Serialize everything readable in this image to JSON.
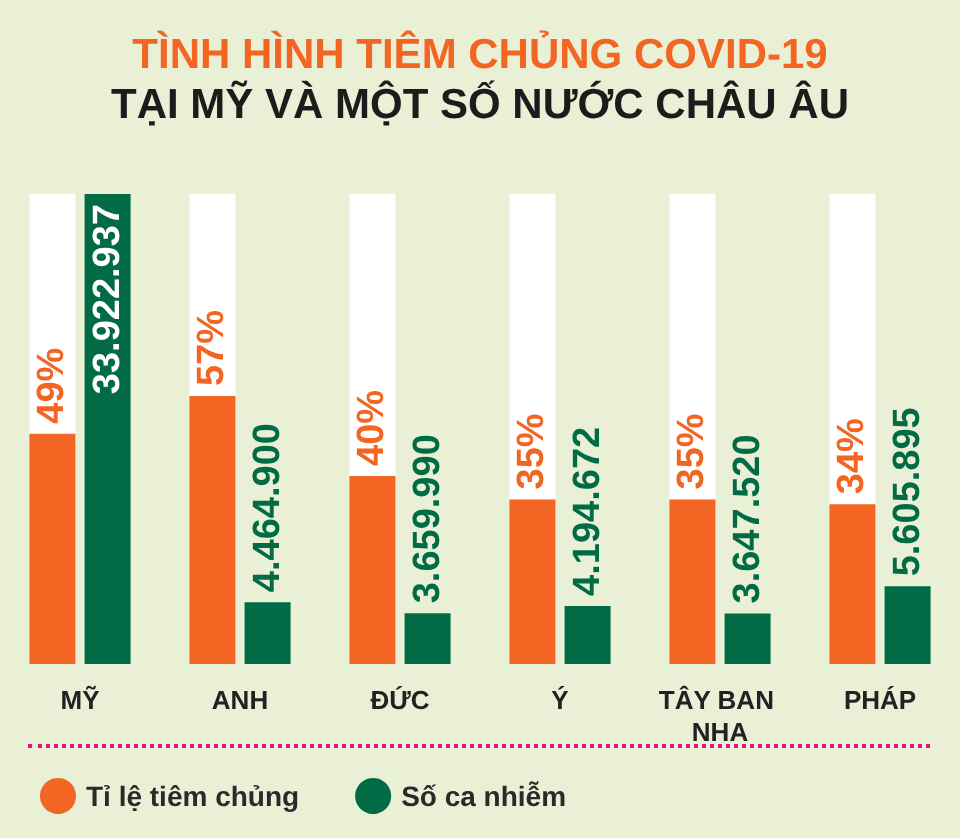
{
  "chart_data": {
    "type": "bar",
    "title": "TÌNH HÌNH TIÊM CHỦNG COVID-19",
    "subtitle": "TẠI MỸ VÀ MỘT SỐ NƯỚC CHÂU ÂU",
    "categories": [
      "MỸ",
      "ANH",
      "ĐỨC",
      "Ý",
      "TÂY BAN NHA",
      "PHÁP"
    ],
    "series": [
      {
        "name": "Tỉ lệ tiêm chủng",
        "color": "#f26522",
        "values": [
          49,
          57,
          40,
          35,
          35,
          34
        ],
        "value_labels": [
          "49%",
          "57%",
          "40%",
          "35%",
          "35%",
          "34%"
        ]
      },
      {
        "name": "Số ca nhiễm",
        "color": "#006b45",
        "axis": "y2",
        "values": [
          33922937,
          4464900,
          3659990,
          4194672,
          3647520,
          5605895
        ],
        "value_labels": [
          "33.922.937",
          "4.464.900",
          "3.659.990",
          "4.194.672",
          "3.647.520",
          "5.605.895"
        ]
      }
    ],
    "ylim": [
      0,
      100
    ],
    "y2lim": [
      0,
      33922937
    ],
    "tick_labels": "x",
    "legend": "bottom left"
  }
}
